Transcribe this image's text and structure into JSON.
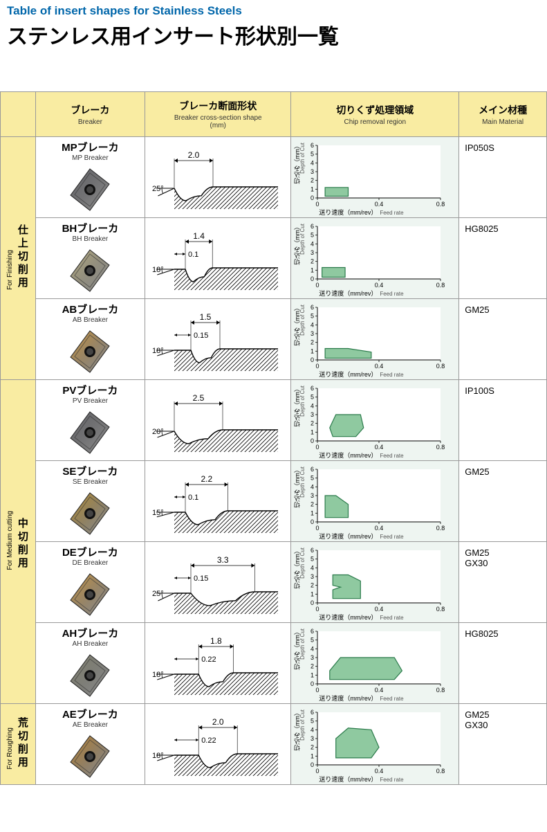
{
  "title_en": "Table of insert shapes for Stainless Steels",
  "title_jp": "ステンレス用インサート形状別一覧",
  "headers": {
    "breaker": {
      "jp": "ブレーカ",
      "en": "Breaker"
    },
    "cross": {
      "jp": "ブレーカ断面形状",
      "en": "Breaker cross-section shape\n(mm)"
    },
    "chip": {
      "jp": "切りくず処理領域",
      "en": "Chip removal region"
    },
    "material": {
      "jp": "メイン材種",
      "en": "Main Material"
    }
  },
  "chip_axes": {
    "x_label": "送り速度（mm/rev）",
    "x_label_en": "Feed rate",
    "y_label": "切込み（mm）",
    "y_label_en": "Depth of Cut",
    "x_ticks": [
      0,
      0.4,
      0.8
    ],
    "y_ticks": [
      0,
      1,
      2,
      3,
      4,
      5,
      6
    ],
    "xlim": [
      0,
      0.8
    ],
    "ylim": [
      0,
      6
    ],
    "axis_color": "#000",
    "region_fill": "#8fc9a0",
    "region_stroke": "#2a7a4a",
    "bg_color": "#ffffff",
    "tick_fontsize": 9
  },
  "cross_style": {
    "line_color": "#000",
    "hatch_color": "#000",
    "line_width": 1.2
  },
  "categories": [
    {
      "id": "finishing",
      "jp": "仕上切削用",
      "en": "For Finishing",
      "rows": [
        {
          "name_jp": "MPブレーカ",
          "name_en": "MP Breaker",
          "insert_color": "#6d6d72",
          "cross": {
            "angle": 25,
            "width": 2.0,
            "land": null
          },
          "chip_region": [
            [
              0.05,
              0.2
            ],
            [
              0.2,
              0.2
            ],
            [
              0.2,
              1.2
            ],
            [
              0.05,
              1.2
            ]
          ],
          "material": "IP050S"
        },
        {
          "name_jp": "BHブレーカ",
          "name_en": "BH Breaker",
          "insert_color": "#c9be8f",
          "cross": {
            "angle": 18,
            "width": 1.4,
            "land": 0.1
          },
          "chip_region": [
            [
              0.03,
              0.2
            ],
            [
              0.18,
              0.2
            ],
            [
              0.18,
              1.3
            ],
            [
              0.03,
              1.3
            ]
          ],
          "material": "HG8025"
        },
        {
          "name_jp": "ABブレーカ",
          "name_en": "AB Breaker",
          "insert_color": "#d8a24a",
          "cross": {
            "angle": 18,
            "width": 1.5,
            "land": 0.15
          },
          "chip_region": [
            [
              0.05,
              0.2
            ],
            [
              0.35,
              0.2
            ],
            [
              0.35,
              0.9
            ],
            [
              0.2,
              1.3
            ],
            [
              0.05,
              1.3
            ]
          ],
          "material": "GM25"
        }
      ]
    },
    {
      "id": "medium",
      "jp": "中切削用",
      "en": "For Medium cutting",
      "rows": [
        {
          "name_jp": "PVブレーカ",
          "name_en": "PV Breaker",
          "insert_color": "#6d6d72",
          "cross": {
            "angle": 20,
            "width": 2.5,
            "land": null
          },
          "chip_region": [
            [
              0.1,
              0.5
            ],
            [
              0.25,
              0.5
            ],
            [
              0.3,
              1.5
            ],
            [
              0.28,
              3.0
            ],
            [
              0.12,
              3.0
            ],
            [
              0.08,
              1.5
            ]
          ],
          "material": "IP100S"
        },
        {
          "name_jp": "SEブレーカ",
          "name_en": "SE Breaker",
          "insert_color": "#c49a3a",
          "cross": {
            "angle": 15,
            "width": 2.2,
            "land": 0.1
          },
          "chip_region": [
            [
              0.05,
              0.5
            ],
            [
              0.2,
              0.5
            ],
            [
              0.2,
              2.0
            ],
            [
              0.12,
              3.0
            ],
            [
              0.05,
              3.0
            ]
          ],
          "material": "GM25"
        },
        {
          "name_jp": "DEブレーカ",
          "name_en": "DE Breaker",
          "insert_color": "#d8a24a",
          "cross": {
            "angle": 25,
            "width": 3.3,
            "land": 0.15
          },
          "chip_region": [
            [
              0.1,
              0.5
            ],
            [
              0.28,
              0.5
            ],
            [
              0.28,
              2.5
            ],
            [
              0.2,
              3.2
            ],
            [
              0.1,
              3.2
            ],
            [
              0.1,
              2.0
            ],
            [
              0.15,
              1.8
            ],
            [
              0.1,
              1.5
            ]
          ],
          "material": "GM25\nGX30"
        },
        {
          "name_jp": "AHブレーカ",
          "name_en": "AH Breaker",
          "insert_color": "#8d8d7a",
          "cross": {
            "angle": 18,
            "width": 1.8,
            "land": 0.22
          },
          "chip_region": [
            [
              0.08,
              0.5
            ],
            [
              0.5,
              0.5
            ],
            [
              0.55,
              1.5
            ],
            [
              0.5,
              3.0
            ],
            [
              0.15,
              3.0
            ],
            [
              0.08,
              1.5
            ]
          ],
          "material": "HG8025"
        }
      ]
    },
    {
      "id": "roughing",
      "jp": "荒切削用",
      "en": "For Roughing",
      "rows": [
        {
          "name_jp": "AEブレーカ",
          "name_en": "AE Breaker",
          "insert_color": "#c9903a",
          "cross": {
            "angle": 18,
            "width": 2.0,
            "land": 0.22
          },
          "chip_region": [
            [
              0.12,
              0.8
            ],
            [
              0.35,
              0.8
            ],
            [
              0.4,
              2.0
            ],
            [
              0.35,
              4.0
            ],
            [
              0.2,
              4.2
            ],
            [
              0.12,
              3.0
            ]
          ],
          "material": "GM25\nGX30"
        }
      ]
    }
  ]
}
